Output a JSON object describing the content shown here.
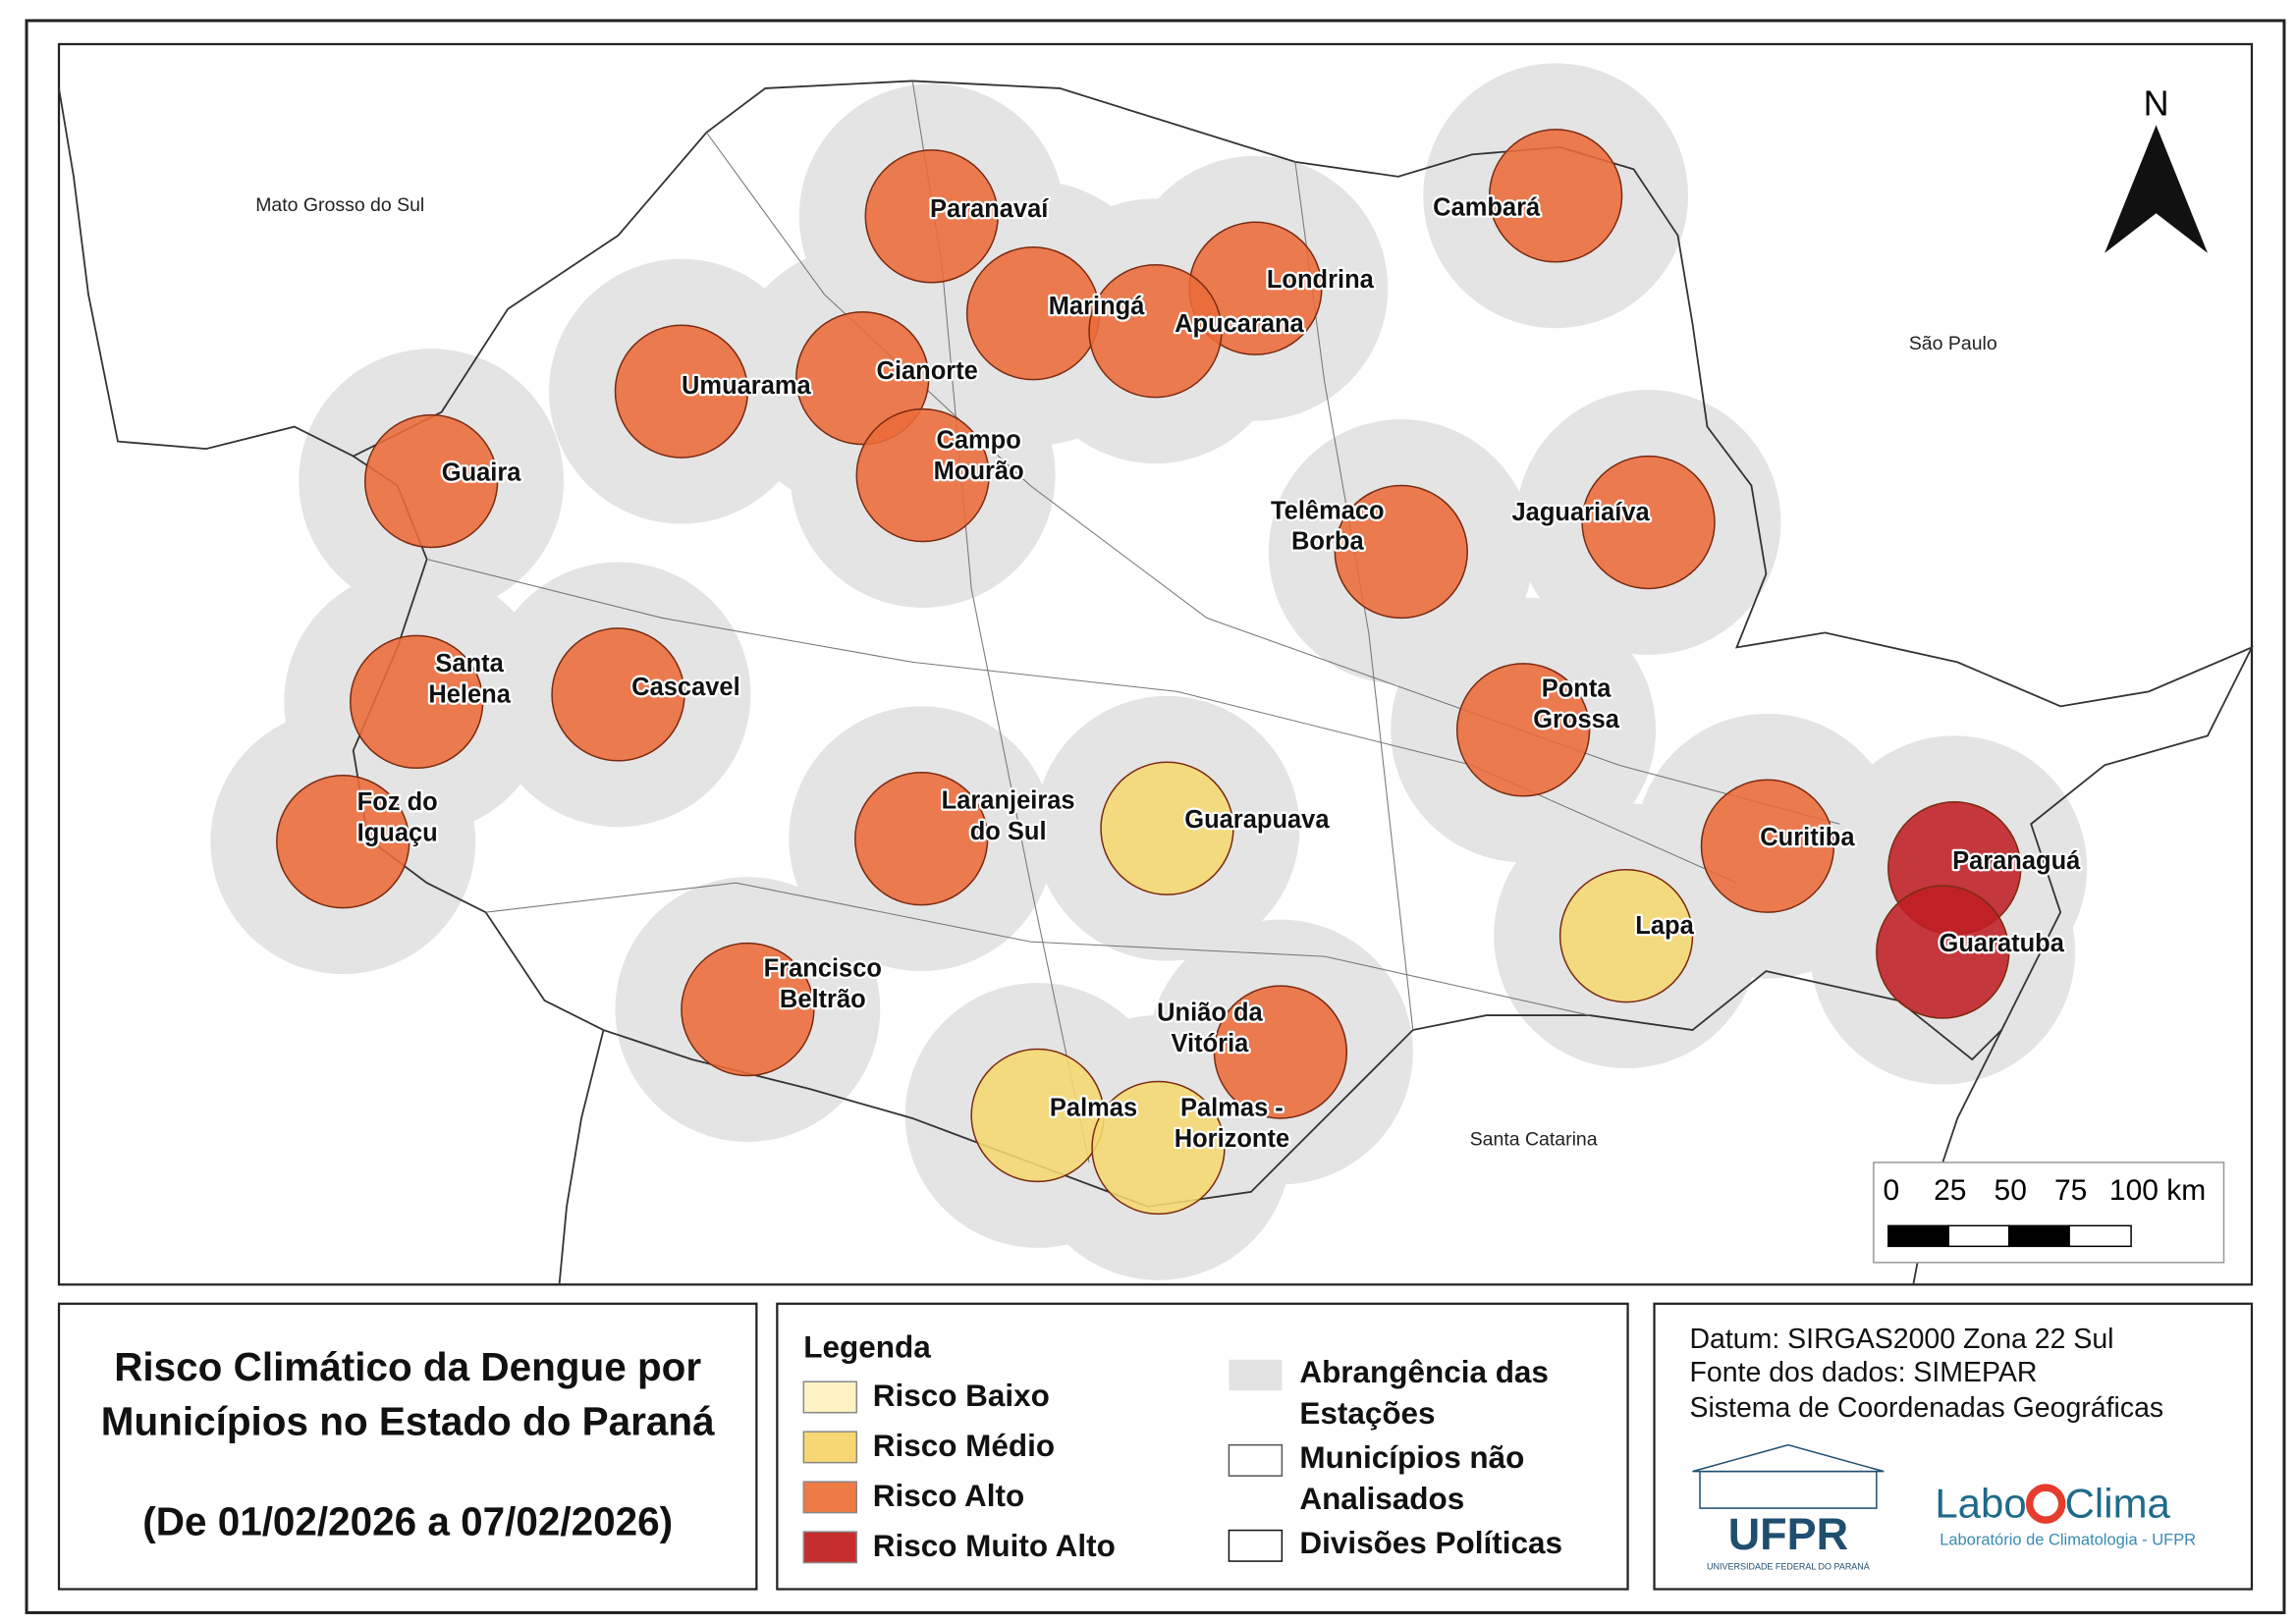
{
  "map": {
    "regions": [
      "Mato Grosso do Sul",
      "São Paulo",
      "Santa Catarina"
    ],
    "north": "N",
    "scale": [
      "0",
      "25",
      "50",
      "75",
      "100 km"
    ],
    "stations": [
      {
        "label": [
          "Paranavaí"
        ],
        "color": "#ec6b3a"
      },
      {
        "label": [
          "Cambará"
        ],
        "color": "#ec6b3a"
      },
      {
        "label": [
          "Londrina"
        ],
        "color": "#ec6b3a"
      },
      {
        "label": [
          "Maringá"
        ],
        "color": "#ec6b3a"
      },
      {
        "label": [
          "Apucarana"
        ],
        "color": "#ec6b3a"
      },
      {
        "label": [
          "Cianorte"
        ],
        "color": "#ec6b3a"
      },
      {
        "label": [
          "Umuarama"
        ],
        "color": "#ec6b3a"
      },
      {
        "label": [
          "Campo",
          "Mourão"
        ],
        "color": "#ec6b3a"
      },
      {
        "label": [
          "Guaira"
        ],
        "color": "#ec6b3a"
      },
      {
        "label": [
          "Telêmaco",
          "Borba"
        ],
        "color": "#ec6b3a"
      },
      {
        "label": [
          "Jaguariaíva"
        ],
        "color": "#ec6b3a"
      },
      {
        "label": [
          "Santa",
          "Helena"
        ],
        "color": "#ec6b3a"
      },
      {
        "label": [
          "Cascavel"
        ],
        "color": "#ec6b3a"
      },
      {
        "label": [
          "Ponta",
          "Grossa"
        ],
        "color": "#ec6b3a"
      },
      {
        "label": [
          "Foz do",
          "Iguaçu"
        ],
        "color": "#ec6b3a"
      },
      {
        "label": [
          "Laranjeiras",
          "do Sul"
        ],
        "color": "#ec6b3a"
      },
      {
        "label": [
          "Guarapuava"
        ],
        "color": "#f6d870"
      },
      {
        "label": [
          "Curitiba"
        ],
        "color": "#ec6b3a"
      },
      {
        "label": [
          "Paranaguá"
        ],
        "color": "#bf1f24"
      },
      {
        "label": [
          "Lapa"
        ],
        "color": "#f6d870"
      },
      {
        "label": [
          "Guaratuba"
        ],
        "color": "#bf1f24"
      },
      {
        "label": [
          "Francisco",
          "Beltrão"
        ],
        "color": "#ec6b3a"
      },
      {
        "label": [
          "União da",
          "Vitória"
        ],
        "color": "#ec6b3a"
      },
      {
        "label": [
          "Palmas"
        ],
        "color": "#f6d870"
      },
      {
        "label": [
          "Palmas -",
          "Horizonte"
        ],
        "color": "#f6d870"
      }
    ]
  },
  "title_box": {
    "lines": [
      "Risco Climático da Dengue por",
      "Municípios no Estado do Paraná",
      "(De 01/02/2026 a 07/02/2026)"
    ]
  },
  "legend": {
    "title": "Legenda",
    "risk": [
      {
        "label": "Risco Baixo",
        "color": "#fff3c4"
      },
      {
        "label": "Risco Médio",
        "color": "#f7d774"
      },
      {
        "label": "Risco Alto",
        "color": "#ee7a45"
      },
      {
        "label": "Risco Muito Alto",
        "color": "#c62e2e"
      }
    ],
    "other": [
      {
        "label": [
          "Abrangência das",
          "Estações"
        ],
        "fill": "#e3e3e3",
        "stroke": "none"
      },
      {
        "label": [
          "Municípios não",
          "Analisados"
        ],
        "fill": "#ffffff",
        "stroke": "#555555"
      },
      {
        "label": [
          "Divisões Políticas"
        ],
        "fill": "#ffffff",
        "stroke": "#111111"
      }
    ]
  },
  "info": {
    "lines": [
      "Datum: SIRGAS2000 Zona 22 Sul",
      "Fonte dos dados: SIMEPAR",
      "Sistema de Coordenadas Geográficas"
    ],
    "ufpr": {
      "name": "UFPR",
      "subtitle": "UNIVERSIDADE FEDERAL DO PARANÁ"
    },
    "labo": {
      "left": "Labo",
      "right": "Clima",
      "subtitle": "Laboratório de Climatologia - UFPR"
    }
  }
}
